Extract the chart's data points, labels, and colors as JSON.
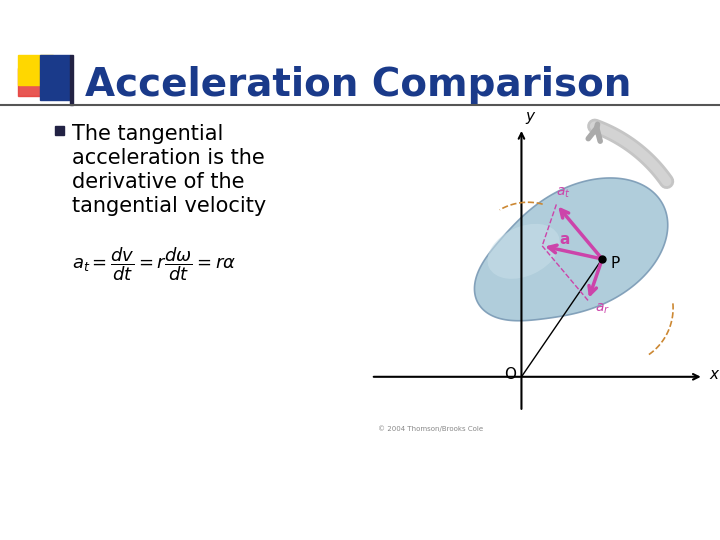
{
  "title": "Acceleration Comparison",
  "title_color": "#1a3a8a",
  "title_fontsize": 28,
  "background_color": "#ffffff",
  "bullet_text": [
    "The tangential",
    "acceleration is the",
    "derivative of the",
    "tangential velocity"
  ],
  "bullet_color": "#000000",
  "bullet_fontsize": 15,
  "header_bar_color": "#555555",
  "logo_yellow": "#FFD700",
  "logo_red": "#e53935",
  "logo_blue": "#1a3a8a",
  "blob_color": "#a8c8d8",
  "blob_edge": "#7a9ab5",
  "blob_inner": "#c8dfe8",
  "arrow_color": "#cc44aa",
  "arc_color": "#cc8833",
  "gray_arrow": "#aaaaaa",
  "copyright": "© 2004 Thomson/Brooks Cole"
}
